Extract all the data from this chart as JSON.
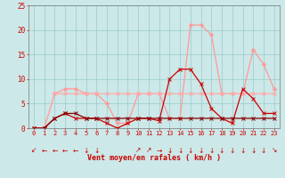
{
  "x": [
    0,
    1,
    2,
    3,
    4,
    5,
    6,
    7,
    8,
    9,
    10,
    11,
    12,
    13,
    14,
    15,
    16,
    17,
    18,
    19,
    20,
    21,
    22,
    23
  ],
  "line_rafales_light": [
    0,
    0,
    7,
    8,
    8,
    7,
    7,
    5,
    1,
    1,
    7,
    7,
    7,
    2,
    2,
    21,
    21,
    19,
    7,
    7,
    7,
    16,
    13,
    8
  ],
  "line_moyen_light": [
    0,
    0,
    7,
    7,
    7,
    7,
    7,
    7,
    7,
    7,
    7,
    7,
    7,
    7,
    7,
    7,
    7,
    7,
    7,
    7,
    7,
    7,
    7,
    7
  ],
  "line_rafales_dark": [
    0,
    0,
    2,
    3,
    2,
    2,
    2,
    1,
    0,
    1,
    2,
    2,
    1.5,
    10,
    12,
    12,
    9,
    4,
    2,
    1,
    8,
    6,
    3,
    3
  ],
  "line_moyen_dark": [
    0,
    0,
    2,
    3,
    3,
    2,
    2,
    2,
    2,
    2,
    2,
    2,
    2,
    2,
    2,
    2,
    2,
    2,
    2,
    2,
    2,
    2,
    2,
    2
  ],
  "arrow_dirs": [
    "↙",
    "←",
    "←",
    "←",
    "←",
    "↓",
    "↓",
    " ",
    " ",
    " ",
    "↗",
    "↗",
    "→",
    "↓",
    "↓",
    "↓",
    "↓",
    "↓",
    "↓",
    "↓",
    "↓",
    "↓",
    "↓",
    "↘"
  ],
  "background_color": "#cce8e8",
  "grid_color": "#99cccc",
  "line_rafales_light_color": "#ff9999",
  "line_moyen_light_color": "#ffaaaa",
  "line_rafales_dark_color": "#cc0000",
  "line_moyen_dark_color": "#880000",
  "xlabel": "Vent moyen/en rafales ( km/h )",
  "xlabel_color": "#cc0000",
  "tick_color": "#cc0000",
  "arrow_color": "#cc0000",
  "ylim": [
    0,
    25
  ],
  "yticks": [
    0,
    5,
    10,
    15,
    20,
    25
  ],
  "xlim": [
    -0.5,
    23.5
  ],
  "figsize": [
    3.2,
    2.0
  ],
  "dpi": 100
}
